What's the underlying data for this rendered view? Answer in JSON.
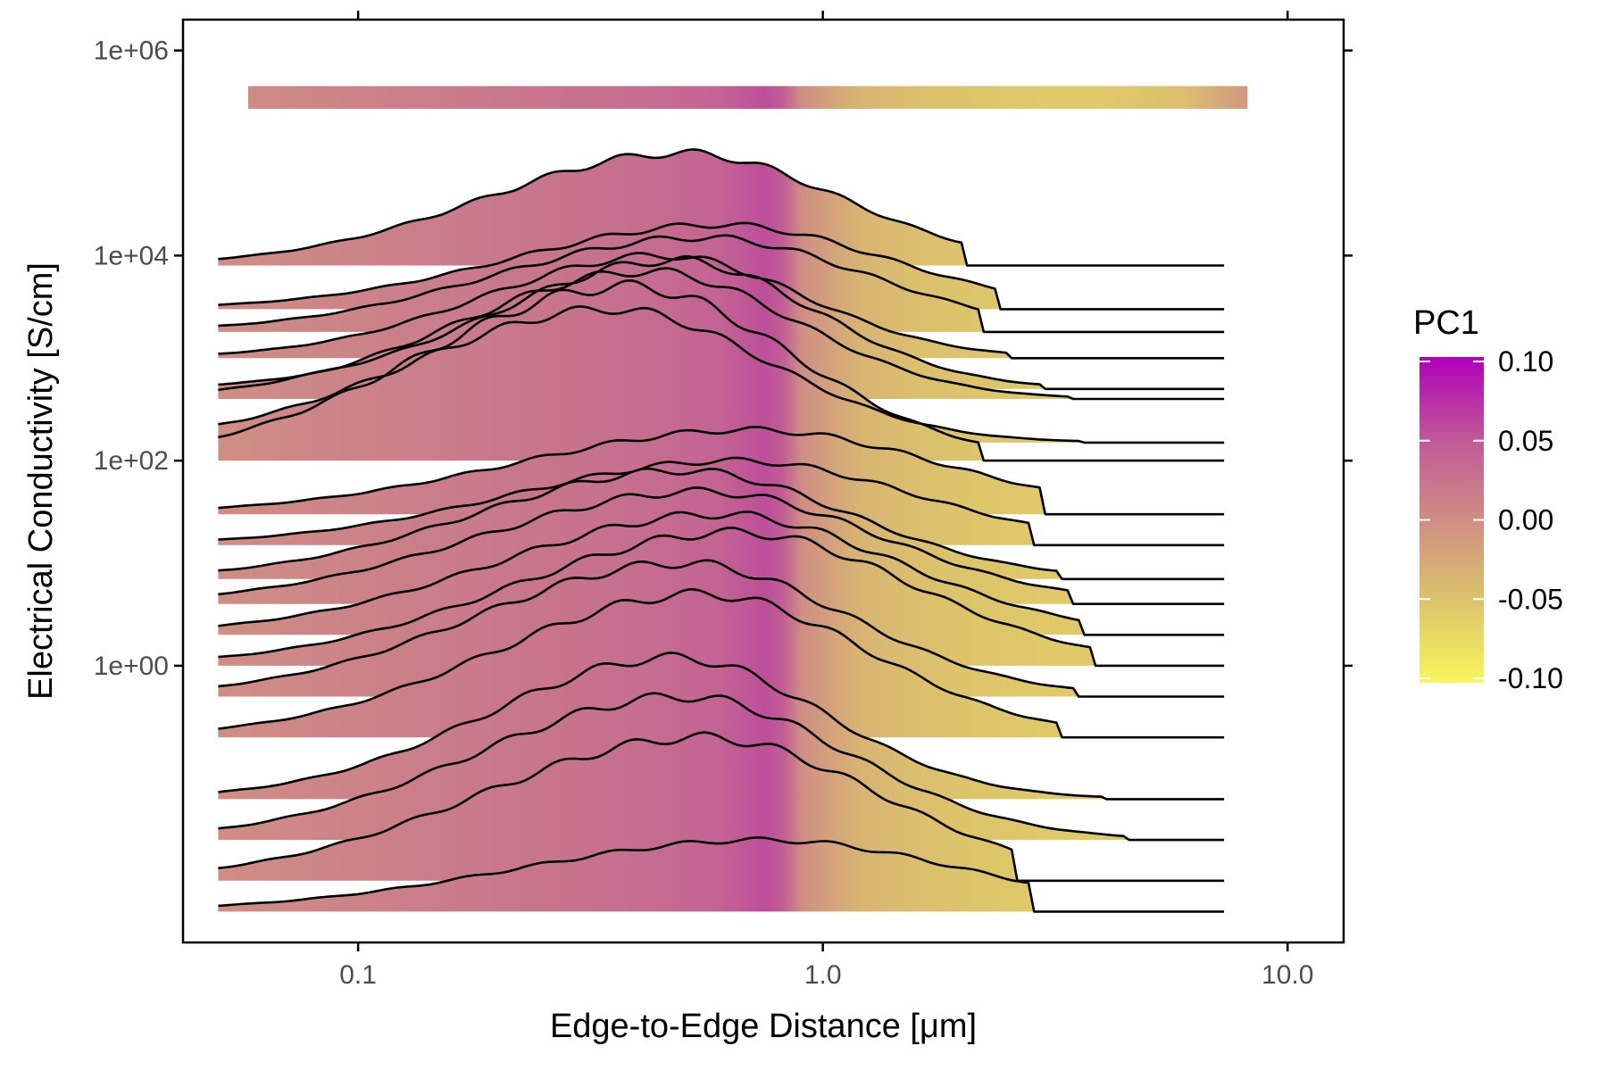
{
  "chart_data": {
    "type": "area",
    "xlabel": "Edge-to-Edge Distance [μm]",
    "ylabel": "Electrical Conductivity [S/cm]",
    "x_scale": "log10",
    "y_scale": "log10",
    "xlim": [
      0.042,
      13.2
    ],
    "ylim": [
      0.002,
      2000000
    ],
    "x_ticks": [
      0.1,
      1.0,
      10.0
    ],
    "x_tick_labels": [
      "0.1",
      "1.0",
      "10.0"
    ],
    "y_ticks": [
      1,
      100,
      10000,
      1000000
    ],
    "y_tick_labels": [
      "1e+00",
      "1e+02",
      "1e+04",
      "1e+06"
    ],
    "grid": false,
    "legend": {
      "title": "PC1",
      "position": "right",
      "labels": [
        "0.10",
        "0.05",
        "0.00",
        "-0.05",
        "-0.10"
      ],
      "range": [
        -0.1,
        0.1
      ],
      "colors": [
        "#f7f75b",
        "#dcc46b",
        "#cf8e84",
        "#c05898",
        "#b000b8"
      ]
    },
    "pc1_profile": {
      "x": [
        0.05,
        0.1,
        0.2,
        0.4,
        0.6,
        0.75,
        0.82,
        0.9,
        1.2,
        1.6,
        2.0,
        3.0,
        4.0,
        6.0,
        8.0
      ],
      "pc1": [
        0.0,
        0.01,
        0.02,
        0.03,
        0.04,
        0.055,
        0.045,
        0.0,
        -0.035,
        -0.045,
        -0.05,
        -0.055,
        -0.055,
        -0.045,
        -0.01
      ]
    },
    "top_band": {
      "x": [
        0.058,
        8.2
      ],
      "y": [
        450000,
        270000
      ]
    },
    "curve_x_range": [
      0.05,
      7.3
    ],
    "series": [
      {
        "base": 8000,
        "peak": 100000,
        "peak_x": 0.5,
        "width": 0.4,
        "tail_end": 2.0
      },
      {
        "base": 3000,
        "peak": 20000,
        "peak_x": 0.6,
        "width": 0.42,
        "tail_end": 2.4
      },
      {
        "base": 1800,
        "peak": 15000,
        "peak_x": 0.55,
        "width": 0.42,
        "tail_end": 2.2
      },
      {
        "base": 1000,
        "peak": 10000,
        "peak_x": 0.45,
        "width": 0.36,
        "tail_end": 2.5
      },
      {
        "base": 500,
        "peak": 9000,
        "peak_x": 0.48,
        "width": 0.36,
        "tail_end": 3.0
      },
      {
        "base": 400,
        "peak": 7000,
        "peak_x": 0.42,
        "width": 0.38,
        "tail_end": 3.4
      },
      {
        "base": 150,
        "peak": 3000,
        "peak_x": 0.35,
        "width": 0.4,
        "tail_end": 3.6
      },
      {
        "base": 100,
        "peak": 5000,
        "peak_x": 0.38,
        "width": 0.42,
        "tail_end": 2.2
      },
      {
        "base": 30,
        "peak": 200,
        "peak_x": 0.7,
        "width": 0.48,
        "tail_end": 3.0
      },
      {
        "base": 15,
        "peak": 100,
        "peak_x": 0.65,
        "width": 0.45,
        "tail_end": 2.8
      },
      {
        "base": 7,
        "peak": 80,
        "peak_x": 0.5,
        "width": 0.42,
        "tail_end": 3.2
      },
      {
        "base": 4,
        "peak": 50,
        "peak_x": 0.55,
        "width": 0.45,
        "tail_end": 3.4
      },
      {
        "base": 2,
        "peak": 30,
        "peak_x": 0.6,
        "width": 0.45,
        "tail_end": 3.6
      },
      {
        "base": 1,
        "peak": 20,
        "peak_x": 0.65,
        "width": 0.45,
        "tail_end": 3.8
      },
      {
        "base": 0.5,
        "peak": 10,
        "peak_x": 0.5,
        "width": 0.42,
        "tail_end": 3.5
      },
      {
        "base": 0.2,
        "peak": 5,
        "peak_x": 0.55,
        "width": 0.42,
        "tail_end": 3.2
      },
      {
        "base": 0.05,
        "peak": 1.2,
        "peak_x": 0.48,
        "width": 0.38,
        "tail_end": 4.0
      },
      {
        "base": 0.02,
        "peak": 0.5,
        "peak_x": 0.5,
        "width": 0.42,
        "tail_end": 4.5
      },
      {
        "base": 0.008,
        "peak": 0.2,
        "peak_x": 0.55,
        "width": 0.45,
        "tail_end": 2.6
      },
      {
        "base": 0.004,
        "peak": 0.02,
        "peak_x": 0.75,
        "width": 0.5,
        "tail_end": 2.8
      }
    ]
  }
}
